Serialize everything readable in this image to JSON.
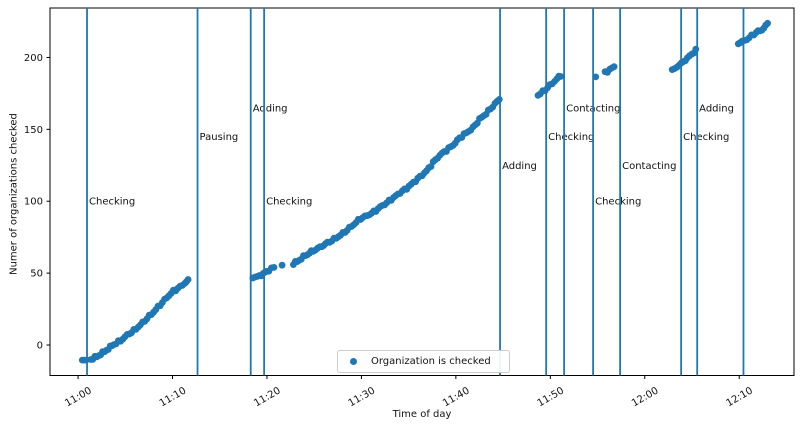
{
  "chart_data": {
    "type": "scatter",
    "title": "",
    "xlabel": "Time of day",
    "ylabel": "Numer of organizations checked",
    "legend": {
      "label": "Organization is checked",
      "position": "lower center",
      "marker": "dot"
    },
    "colors": {
      "points": "#1f77b4",
      "vlines": "#1f77b4",
      "axis": "#000000",
      "text": "#111111",
      "legend_border": "#cccccc"
    },
    "x_axis_note": "x values are minutes after 11:00",
    "xlim_minutes": [
      -2.97,
      75.8
    ],
    "ylim": [
      -21.2,
      234.4
    ],
    "grid": false,
    "x_ticks": [
      {
        "label": "11:00",
        "minutes": 0
      },
      {
        "label": "11:10",
        "minutes": 10
      },
      {
        "label": "11:20",
        "minutes": 20
      },
      {
        "label": "11:30",
        "minutes": 30
      },
      {
        "label": "11:40",
        "minutes": 40
      },
      {
        "label": "11:50",
        "minutes": 50
      },
      {
        "label": "12:00",
        "minutes": 60
      },
      {
        "label": "12:10",
        "minutes": 70
      }
    ],
    "y_ticks": [
      0,
      50,
      100,
      150,
      200
    ],
    "vlines": [
      {
        "time": "11:01",
        "minutes": 0.95,
        "label": "Checking",
        "label_y": 100
      },
      {
        "time": "11:13",
        "minutes": 12.65,
        "label": "Pausing",
        "label_y": 145
      },
      {
        "time": "11:18",
        "minutes": 18.28,
        "label": "Adding",
        "label_y": 165
      },
      {
        "time": "11:20",
        "minutes": 19.7,
        "label": "Checking",
        "label_y": 100
      },
      {
        "time": "11:45",
        "minutes": 44.68,
        "label": "Adding",
        "label_y": 125
      },
      {
        "time": "11:50",
        "minutes": 49.56,
        "label": "Checking",
        "label_y": 145
      },
      {
        "time": "11:51",
        "minutes": 51.46,
        "label": "Contacting",
        "label_y": 165
      },
      {
        "time": "11:55",
        "minutes": 54.53,
        "label": "Checking",
        "label_y": 100
      },
      {
        "time": "11:57",
        "minutes": 57.39,
        "label": "Contacting",
        "label_y": 125
      },
      {
        "time": "12:04",
        "minutes": 63.85,
        "label": "Checking",
        "label_y": 145
      },
      {
        "time": "12:06",
        "minutes": 65.55,
        "label": "Adding",
        "label_y": 165
      },
      {
        "time": "12:10",
        "minutes": 70.45,
        "label": "",
        "label_y": null
      }
    ],
    "series": [
      {
        "name": "Organization is checked",
        "segments": [
          {
            "anchors": [
              [
                0.45,
                -10.5
              ],
              [
                0.85,
                -10.5
              ]
            ]
          },
          {
            "anchors": [
              [
                1.35,
                -10
              ],
              [
                2.0,
                -8
              ],
              [
                2.6,
                -5.5
              ],
              [
                3.2,
                -2.5
              ],
              [
                3.8,
                0.5
              ],
              [
                4.5,
                3
              ],
              [
                5.2,
                7
              ],
              [
                5.9,
                10
              ],
              [
                6.6,
                14
              ],
              [
                7.3,
                18.5
              ],
              [
                8.0,
                23
              ],
              [
                8.7,
                28
              ],
              [
                9.4,
                33
              ],
              [
                10.1,
                37.5
              ],
              [
                10.8,
                40.5
              ],
              [
                11.3,
                43
              ],
              [
                11.65,
                45
              ]
            ]
          },
          {
            "anchors": [
              [
                18.5,
                47
              ],
              [
                19.0,
                47.5
              ],
              [
                19.6,
                49.5
              ],
              [
                20.2,
                52
              ],
              [
                20.75,
                54
              ]
            ]
          },
          {
            "anchors": [
              [
                21.6,
                55.5
              ]
            ]
          },
          {
            "anchors": [
              [
                22.8,
                56.5
              ],
              [
                23.4,
                59
              ],
              [
                24.1,
                62.5
              ],
              [
                24.9,
                65.5
              ],
              [
                25.6,
                68
              ],
              [
                26.4,
                71
              ],
              [
                27.1,
                73.5
              ],
              [
                27.8,
                76.5
              ],
              [
                28.5,
                80
              ],
              [
                29.2,
                84
              ],
              [
                29.9,
                88
              ],
              [
                30.6,
                90
              ],
              [
                31.3,
                92.5
              ],
              [
                32.0,
                96
              ],
              [
                32.7,
                99
              ],
              [
                33.4,
                102.5
              ],
              [
                34.1,
                106
              ],
              [
                34.8,
                109
              ],
              [
                35.5,
                113
              ],
              [
                36.2,
                117
              ],
              [
                36.9,
                121
              ],
              [
                37.6,
                127
              ],
              [
                38.3,
                132
              ],
              [
                39.0,
                135.5
              ],
              [
                39.7,
                139
              ],
              [
                40.4,
                144
              ],
              [
                41.1,
                147.5
              ],
              [
                41.8,
                151
              ],
              [
                42.5,
                157
              ],
              [
                43.2,
                161
              ],
              [
                43.9,
                166
              ],
              [
                44.6,
                171
              ]
            ]
          },
          {
            "anchors": [
              [
                48.7,
                174
              ],
              [
                49.2,
                176
              ],
              [
                49.7,
                179
              ],
              [
                50.2,
                182
              ],
              [
                50.7,
                185
              ],
              [
                51.1,
                187.5
              ]
            ]
          },
          {
            "anchors": [
              [
                54.8,
                186.5
              ]
            ]
          },
          {
            "anchors": [
              [
                55.8,
                189.5
              ],
              [
                56.3,
                191.5
              ],
              [
                56.75,
                193.5
              ]
            ]
          },
          {
            "anchors": [
              [
                62.9,
                191
              ],
              [
                63.4,
                193.5
              ],
              [
                63.9,
                196
              ],
              [
                64.5,
                199.5
              ],
              [
                65.0,
                202.5
              ],
              [
                65.4,
                205
              ]
            ]
          },
          {
            "anchors": [
              [
                69.9,
                210
              ],
              [
                70.3,
                211
              ],
              [
                70.8,
                212.5
              ],
              [
                71.3,
                215
              ],
              [
                71.8,
                217.5
              ],
              [
                72.2,
                218.5
              ],
              [
                72.6,
                220.5
              ],
              [
                73.0,
                223.5
              ]
            ]
          }
        ]
      }
    ]
  }
}
